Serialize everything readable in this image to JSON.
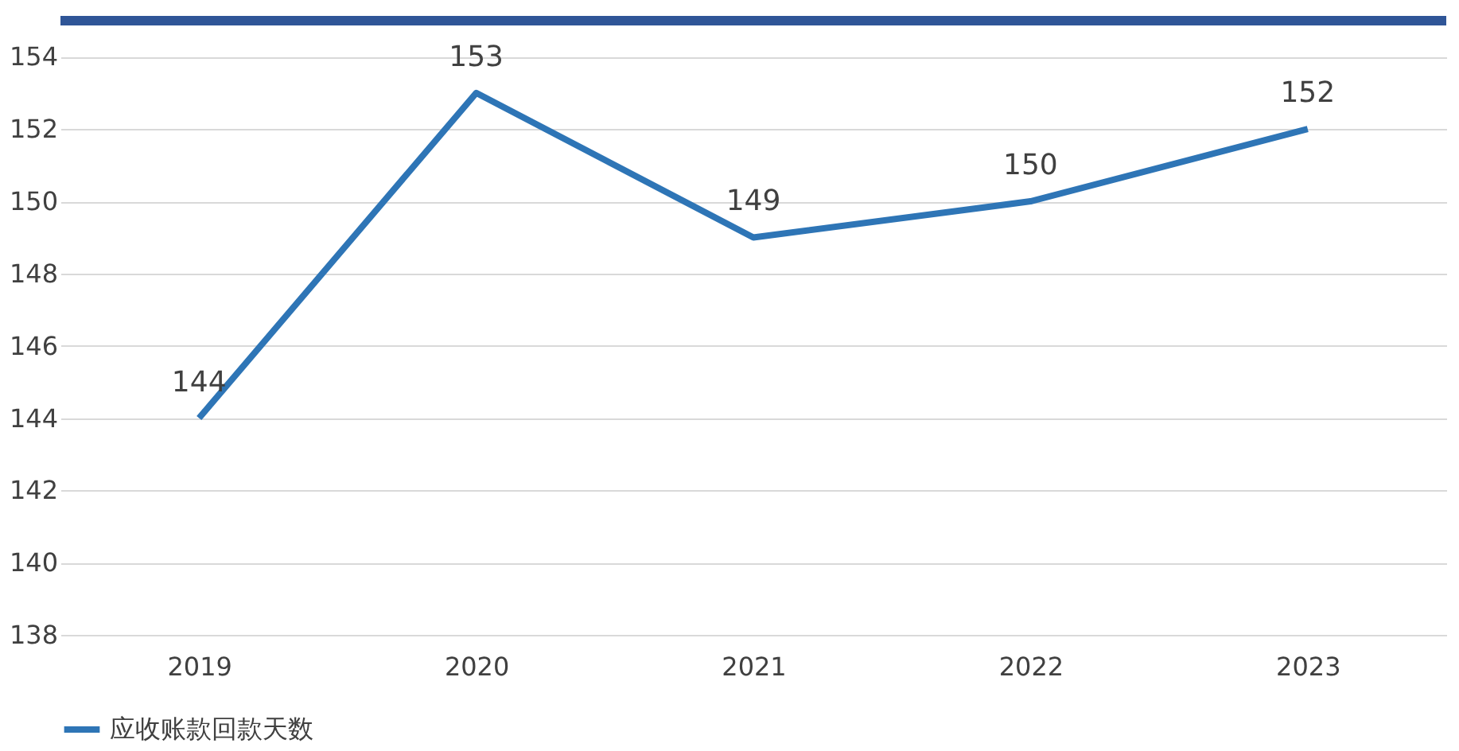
{
  "chart_data": {
    "type": "line",
    "categories": [
      "2019",
      "2020",
      "2021",
      "2022",
      "2023"
    ],
    "series": [
      {
        "name": "应收账款回款天数",
        "color": "#2e75b6",
        "values": [
          144,
          153,
          149,
          150,
          152
        ]
      }
    ],
    "ylim": [
      138,
      155
    ],
    "yticks": [
      138,
      140,
      142,
      144,
      146,
      148,
      150,
      152,
      154
    ],
    "grid": "y",
    "legend": "bottom",
    "data_labels": true,
    "marker": "none",
    "line_style": "solid"
  }
}
